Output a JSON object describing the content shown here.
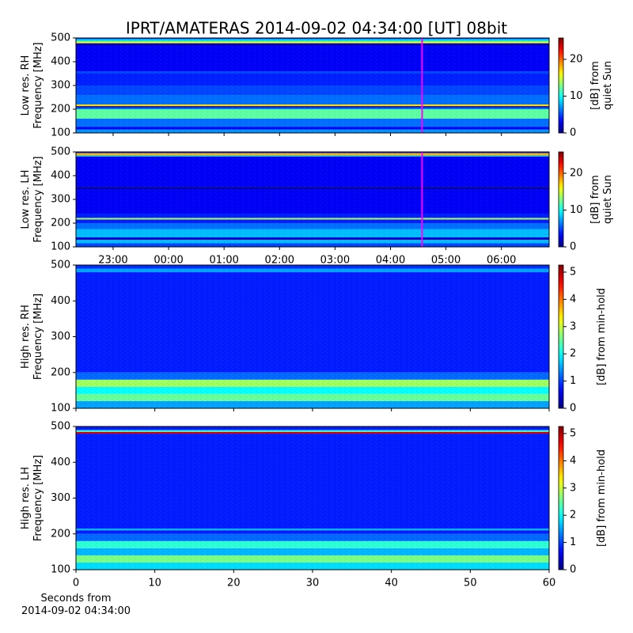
{
  "chart_data": [
    {
      "type": "spectrogram",
      "title": "IPRT/AMATERAS 2014-09-02 04:34:00 [UT]   08bit",
      "ylabel": "Low res. RH\nFrequency [MHz]",
      "ylim": [
        100,
        500
      ],
      "yticks": [
        100,
        200,
        300,
        400,
        500
      ],
      "xlim": [
        22.33,
        30.86
      ],
      "xticks": [
        23,
        24,
        25,
        26,
        27,
        28,
        29,
        30
      ],
      "show_xtick_labels": false,
      "marker_x": 28.57,
      "marker_color": "#ff00ff",
      "colormap": "jet",
      "clabel": "[dB] from\nquiet Sun",
      "clim": [
        0,
        25.8
      ],
      "cticks": [
        0,
        10,
        20
      ],
      "profile_y": [
        100,
        115,
        125,
        160,
        200,
        207,
        213,
        220,
        260,
        300,
        350,
        360,
        470,
        478,
        485,
        495,
        500
      ],
      "profile_values": [
        7,
        3,
        6,
        12,
        6,
        1,
        17,
        6,
        5,
        4,
        5,
        3,
        1,
        16,
        9,
        5
      ]
    },
    {
      "type": "spectrogram",
      "ylabel": "Low res. LH\nFrequency [MHz]",
      "ylim": [
        100,
        500
      ],
      "yticks": [
        100,
        200,
        300,
        400,
        500
      ],
      "xlim": [
        22.33,
        30.86
      ],
      "xticks": [
        {
          "value": 23,
          "label": "23:00"
        },
        {
          "value": 24,
          "label": "00:00"
        },
        {
          "value": 25,
          "label": "01:00"
        },
        {
          "value": 26,
          "label": "02:00"
        },
        {
          "value": 27,
          "label": "03:00"
        },
        {
          "value": 28,
          "label": "04:00"
        },
        {
          "value": 29,
          "label": "05:00"
        },
        {
          "value": 30,
          "label": "06:00"
        }
      ],
      "show_xtick_labels": true,
      "xtick_side": "bottom",
      "marker_x": 28.57,
      "marker_color": "#ff00ff",
      "colormap": "jet",
      "clabel": "[dB] from\nquiet Sun",
      "clim": [
        0,
        25.8
      ],
      "cticks": [
        0,
        10,
        20
      ],
      "profile_y": [
        100,
        115,
        130,
        140,
        175,
        200,
        215,
        222,
        240,
        250,
        345,
        352,
        480,
        485,
        495,
        500
      ],
      "profile_values": [
        5,
        8,
        2,
        8,
        6,
        4,
        14,
        4,
        3,
        3,
        0,
        3,
        8,
        18,
        4
      ]
    },
    {
      "type": "spectrogram",
      "ylabel": "High res. RH\nFrequency [MHz]",
      "ylim": [
        100,
        500
      ],
      "yticks": [
        100,
        200,
        300,
        400,
        500
      ],
      "xlim": [
        0,
        60
      ],
      "xticks": [
        0,
        10,
        20,
        30,
        40,
        50,
        60
      ],
      "show_xtick_labels": false,
      "colormap": "jet",
      "clabel": "[dB] from min-hold",
      "clim": [
        0,
        5.26
      ],
      "cticks": [
        0,
        1,
        2,
        3,
        4,
        5
      ],
      "profile_y": [
        100,
        120,
        140,
        160,
        180,
        200,
        480,
        490,
        500
      ],
      "profile_values": [
        1.5,
        2.5,
        2,
        2.8,
        1.2,
        0.8,
        1.5,
        0.9
      ]
    },
    {
      "type": "spectrogram",
      "ylabel": "High res. LH\nFrequency [MHz]",
      "ylim": [
        100,
        500
      ],
      "yticks": [
        100,
        200,
        300,
        400,
        500
      ],
      "xlim": [
        0,
        60
      ],
      "xticks": [
        0,
        10,
        20,
        30,
        40,
        50,
        60
      ],
      "show_xtick_labels": true,
      "xlabel": "Seconds from\n2014-09-02 04:34:00",
      "colormap": "jet",
      "clabel": "[dB] from min-hold",
      "clim": [
        0,
        5.26
      ],
      "cticks": [
        0,
        1,
        2,
        3,
        4,
        5
      ],
      "profile_y": [
        100,
        120,
        140,
        160,
        180,
        200,
        210,
        215,
        480,
        485,
        490,
        500
      ],
      "profile_values": [
        1.8,
        2.6,
        1.6,
        2.2,
        1.2,
        0.8,
        1.6,
        0.8,
        4.8,
        2.2,
        0.8
      ]
    }
  ]
}
